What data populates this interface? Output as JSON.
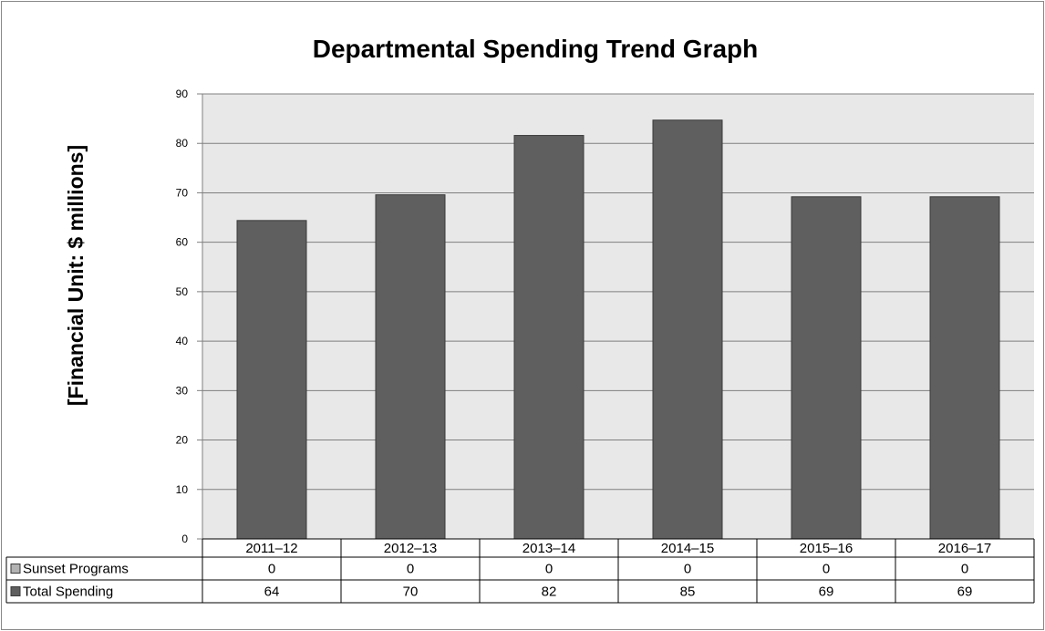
{
  "chart_data": {
    "type": "bar",
    "title": "Departmental Spending Trend Graph",
    "xlabel": "",
    "ylabel": "[Financial Unit: $ millions]",
    "ylim": [
      0,
      90
    ],
    "yticks": [
      "0",
      "10",
      "20",
      "30",
      "40",
      "50",
      "60",
      "70",
      "80",
      "90"
    ],
    "grid": true,
    "categories": [
      "2011–12",
      "2012–13",
      "2013–14",
      "2014–15",
      "2015–16",
      "2016–17"
    ],
    "series": [
      {
        "name": "Sunset Programs",
        "values": [
          0,
          0,
          0,
          0,
          0,
          0
        ],
        "labels": [
          "0",
          "0",
          "0",
          "0",
          "0",
          "0"
        ],
        "color": "#b3b3b3"
      },
      {
        "name": "Total Spending",
        "values": [
          64.4,
          69.6,
          81.6,
          84.7,
          69.2,
          69.2
        ],
        "labels": [
          "64",
          "70",
          "82",
          "85",
          "69",
          "69"
        ],
        "color": "#5f5f5f"
      }
    ],
    "legend_position": "data-table",
    "colors": {
      "plot_background": "#e8e8e8",
      "gridline": "#7f7f7f",
      "bar_border": "#3a3a3a"
    }
  }
}
